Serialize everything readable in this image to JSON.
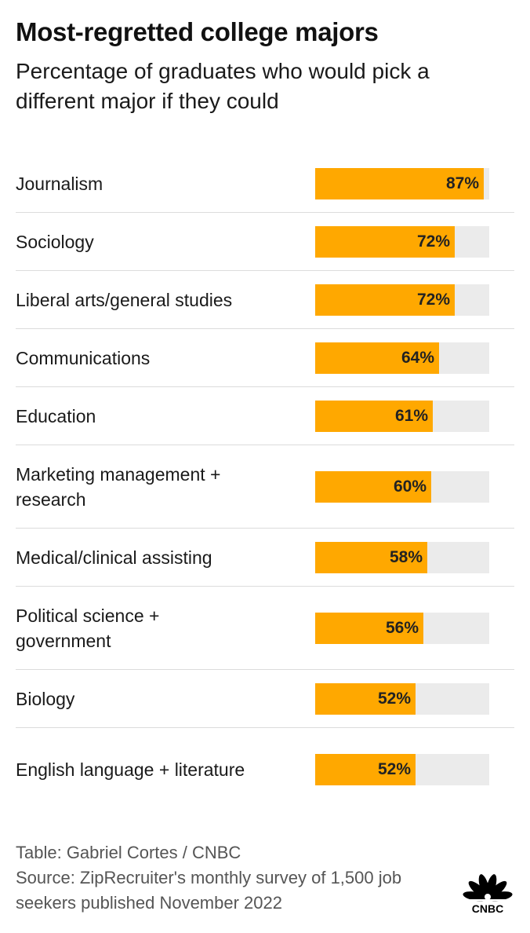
{
  "title": "Most-regretted college majors",
  "subtitle": "Percentage of graduates who would pick a different major if they could",
  "chart_data": {
    "type": "bar",
    "orientation": "horizontal",
    "categories": [
      "Journalism",
      "Sociology",
      "Liberal arts/general studies",
      "Communications",
      "Education",
      "Marketing management + research",
      "Medical/clinical assisting",
      "Political science + government",
      "Biology",
      "English language + literature"
    ],
    "values": [
      87,
      72,
      72,
      64,
      61,
      60,
      58,
      56,
      52,
      52
    ],
    "value_labels": [
      "87%",
      "72%",
      "72%",
      "64%",
      "61%",
      "60%",
      "58%",
      "56%",
      "52%",
      "52%"
    ],
    "xlim": [
      0,
      90
    ],
    "bar_color": "#ffa800",
    "track_color": "#ebebeb"
  },
  "footer": {
    "credit": "Table: Gabriel Cortes / CNBC",
    "source": "Source: ZipRecruiter's monthly survey of 1,500 job seekers published November 2022"
  },
  "logo": {
    "name": "cnbc-peacock-logo",
    "text": "CNBC"
  }
}
